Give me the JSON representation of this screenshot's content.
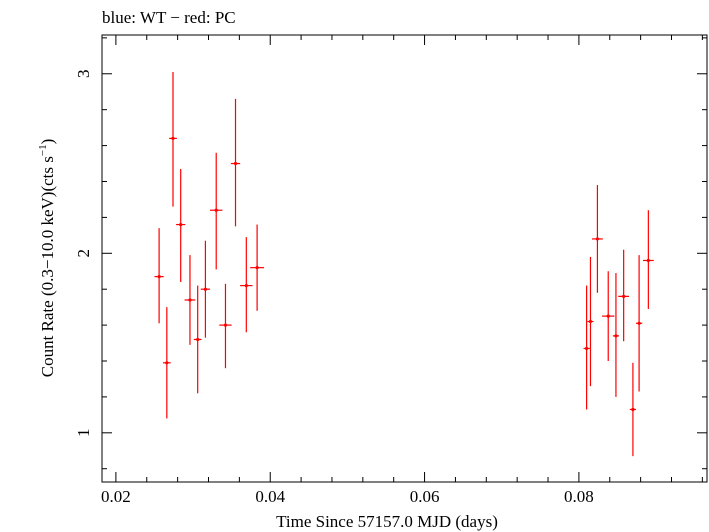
{
  "chart_data": {
    "type": "scatter",
    "title": "blue: WT − red: PC",
    "xlabel": "Time Since 57157.0 MJD (days)",
    "ylabel_parts": {
      "prefix": "Count Rate (0.3−10.0 keV)(cts s",
      "superscript": "−1",
      "suffix": ")"
    },
    "xlim": [
      0.0182,
      0.0966
    ],
    "ylim": [
      0.726,
      3.216
    ],
    "x_ticks": [
      0.02,
      0.04,
      0.06,
      0.08
    ],
    "x_tick_labels": [
      "0.02",
      "0.04",
      "0.06",
      "0.08"
    ],
    "y_ticks": [
      1,
      2,
      3
    ],
    "y_tick_labels": [
      "1",
      "2",
      "3"
    ],
    "grid": false,
    "series": [
      {
        "name": "PC",
        "color": "#ff0000",
        "points": [
          {
            "x": 0.0256,
            "y": 1.87,
            "xerr": 0.0006,
            "ylo": 1.61,
            "yhi": 2.14
          },
          {
            "x": 0.0266,
            "y": 1.39,
            "xerr": 0.0005,
            "ylo": 1.08,
            "yhi": 1.7
          },
          {
            "x": 0.0274,
            "y": 2.64,
            "xerr": 0.0005,
            "ylo": 2.26,
            "yhi": 3.01
          },
          {
            "x": 0.0284,
            "y": 2.16,
            "xerr": 0.0006,
            "ylo": 1.84,
            "yhi": 2.47
          },
          {
            "x": 0.0296,
            "y": 1.74,
            "xerr": 0.0007,
            "ylo": 1.49,
            "yhi": 1.99
          },
          {
            "x": 0.0306,
            "y": 1.52,
            "xerr": 0.0005,
            "ylo": 1.22,
            "yhi": 1.82
          },
          {
            "x": 0.0316,
            "y": 1.8,
            "xerr": 0.0006,
            "ylo": 1.53,
            "yhi": 2.07
          },
          {
            "x": 0.033,
            "y": 2.24,
            "xerr": 0.0008,
            "ylo": 1.91,
            "yhi": 2.56
          },
          {
            "x": 0.0342,
            "y": 1.6,
            "xerr": 0.0008,
            "ylo": 1.36,
            "yhi": 1.83
          },
          {
            "x": 0.0355,
            "y": 2.5,
            "xerr": 0.0006,
            "ylo": 2.15,
            "yhi": 2.86
          },
          {
            "x": 0.0369,
            "y": 1.82,
            "xerr": 0.0008,
            "ylo": 1.56,
            "yhi": 2.09
          },
          {
            "x": 0.0383,
            "y": 1.92,
            "xerr": 0.0009,
            "ylo": 1.68,
            "yhi": 2.16
          },
          {
            "x": 0.081,
            "y": 1.47,
            "xerr": 0.0004,
            "ylo": 1.13,
            "yhi": 1.82
          },
          {
            "x": 0.0815,
            "y": 1.62,
            "xerr": 0.0004,
            "ylo": 1.26,
            "yhi": 1.98
          },
          {
            "x": 0.0824,
            "y": 2.08,
            "xerr": 0.0007,
            "ylo": 1.78,
            "yhi": 2.38
          },
          {
            "x": 0.0838,
            "y": 1.65,
            "xerr": 0.0008,
            "ylo": 1.4,
            "yhi": 1.9
          },
          {
            "x": 0.0848,
            "y": 1.54,
            "xerr": 0.0004,
            "ylo": 1.2,
            "yhi": 1.89
          },
          {
            "x": 0.0858,
            "y": 1.76,
            "xerr": 0.0007,
            "ylo": 1.51,
            "yhi": 2.02
          },
          {
            "x": 0.087,
            "y": 1.13,
            "xerr": 0.0004,
            "ylo": 0.87,
            "yhi": 1.39
          },
          {
            "x": 0.0878,
            "y": 1.61,
            "xerr": 0.0004,
            "ylo": 1.23,
            "yhi": 1.99
          },
          {
            "x": 0.089,
            "y": 1.96,
            "xerr": 0.0007,
            "ylo": 1.69,
            "yhi": 2.24
          }
        ]
      }
    ]
  }
}
